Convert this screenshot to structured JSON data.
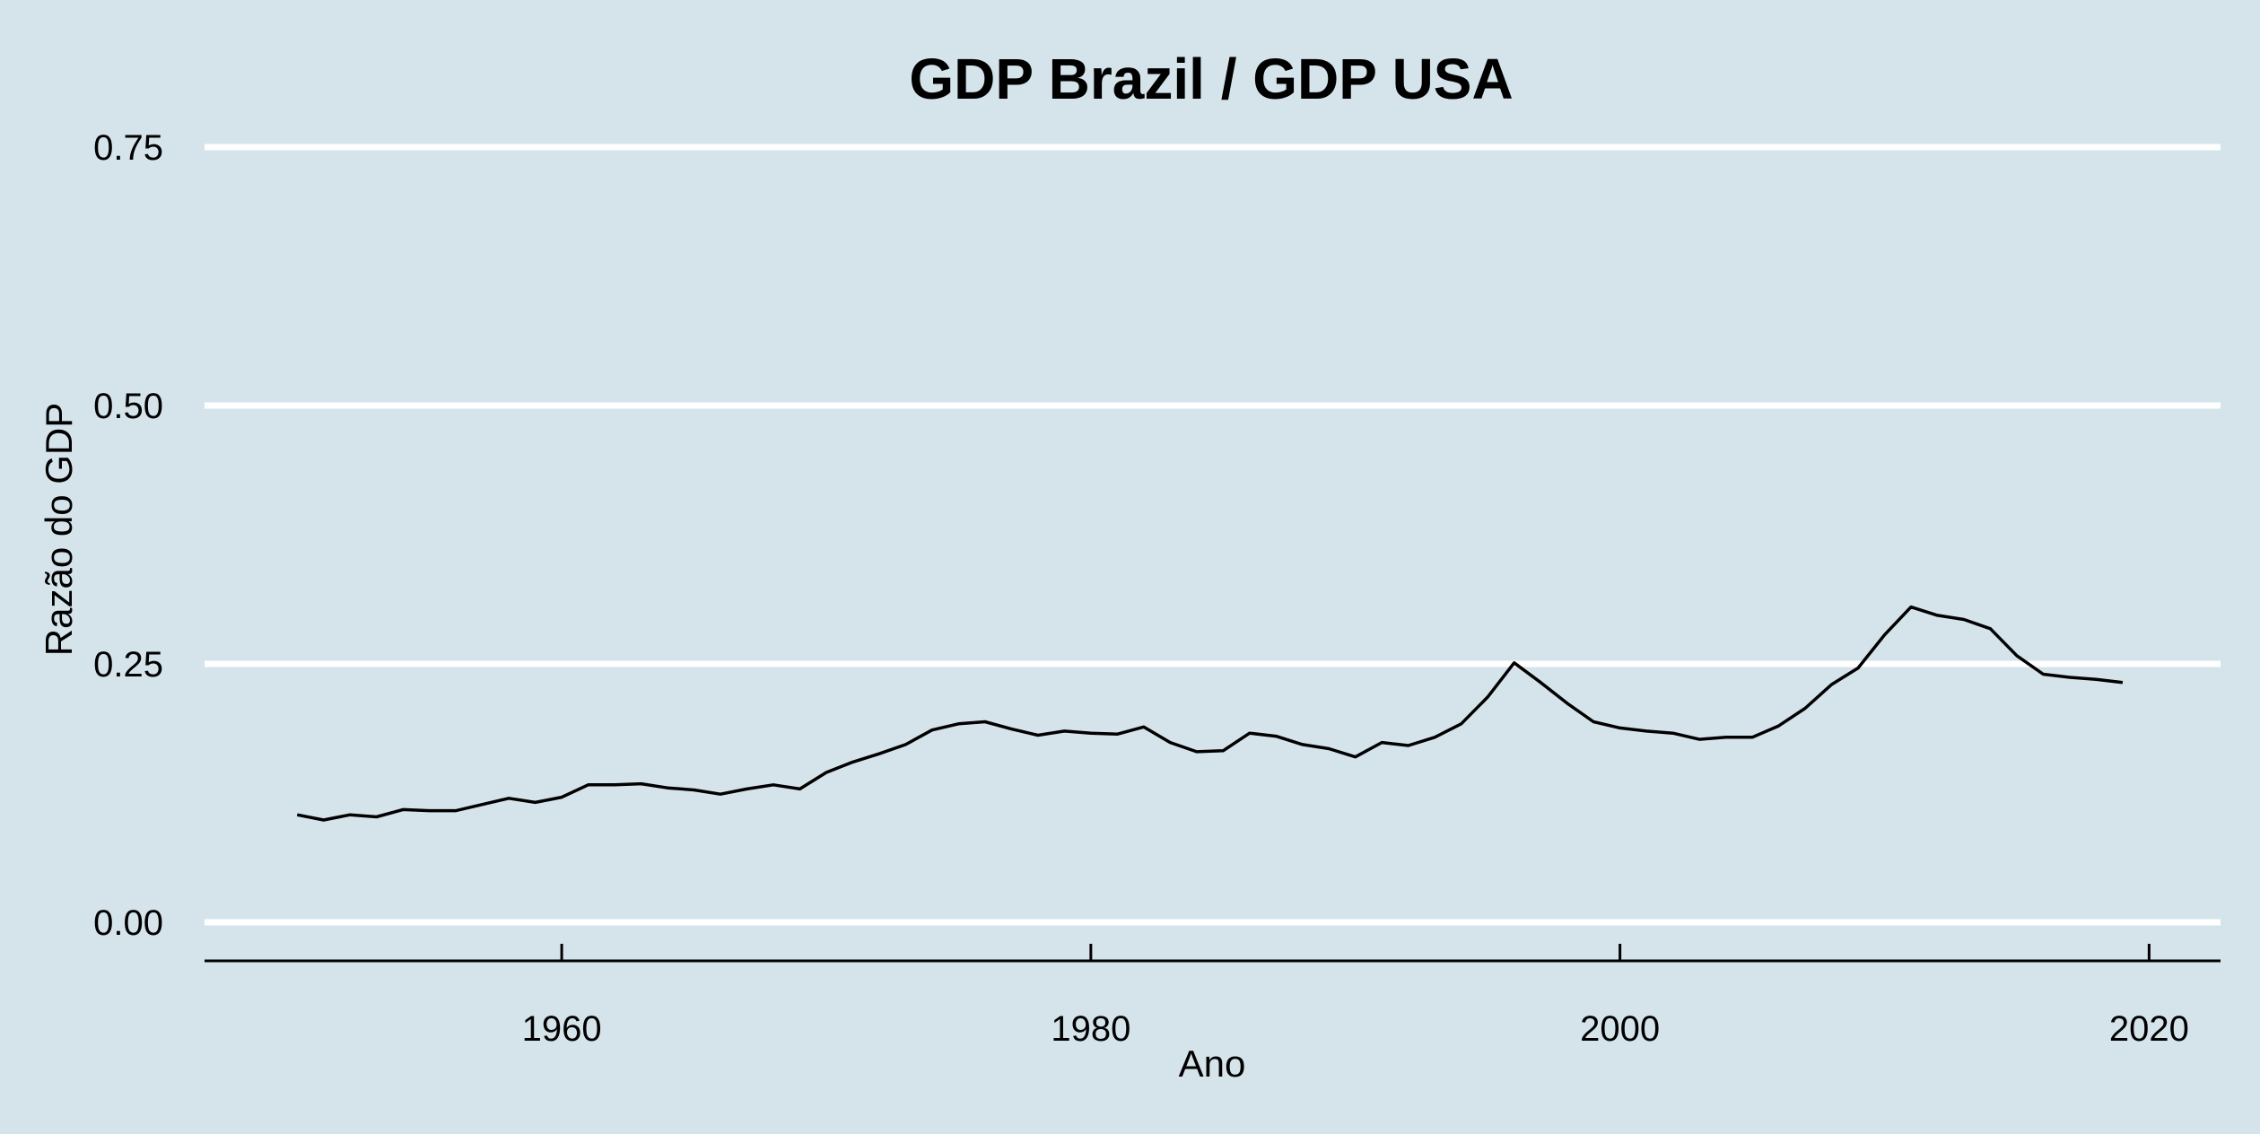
{
  "chart_data": {
    "type": "line",
    "title": "GDP Brazil / GDP USA",
    "xlabel": "Ano",
    "ylabel": "Razão do GDP",
    "xlim": [
      1946.5,
      2022.7
    ],
    "ylim": [
      0,
      0.75
    ],
    "x_ticks": [
      1960,
      1980,
      2000,
      2020
    ],
    "y_ticks": [
      "0.00",
      "0.25",
      "0.50",
      "0.75"
    ],
    "grid": "horizontal",
    "colors": {
      "background": "#d5e4eb",
      "line": "#000000",
      "grid": "#ffffff"
    },
    "series": [
      {
        "x": [
          1950,
          1951,
          1952,
          1953,
          1954,
          1955,
          1956,
          1957,
          1958,
          1959,
          1960,
          1961,
          1962,
          1963,
          1964,
          1965,
          1966,
          1967,
          1968,
          1969,
          1970,
          1971,
          1972,
          1973,
          1974,
          1975,
          1976,
          1977,
          1978,
          1979,
          1980,
          1981,
          1982,
          1983,
          1984,
          1985,
          1986,
          1987,
          1988,
          1989,
          1990,
          1991,
          1992,
          1993,
          1994,
          1995,
          1996,
          1997,
          1998,
          1999,
          2000,
          2001,
          2002,
          2003,
          2004,
          2005,
          2006,
          2007,
          2008,
          2009,
          2010,
          2011,
          2012,
          2013,
          2014,
          2015,
          2016,
          2017,
          2018,
          2019
        ],
        "values": [
          0.104,
          0.099,
          0.104,
          0.102,
          0.109,
          0.108,
          0.108,
          0.114,
          0.12,
          0.116,
          0.121,
          0.133,
          0.133,
          0.134,
          0.13,
          0.128,
          0.124,
          0.129,
          0.133,
          0.129,
          0.145,
          0.155,
          0.163,
          0.172,
          0.186,
          0.192,
          0.194,
          0.187,
          0.181,
          0.185,
          0.183,
          0.182,
          0.189,
          0.174,
          0.165,
          0.166,
          0.183,
          0.18,
          0.172,
          0.168,
          0.16,
          0.174,
          0.171,
          0.179,
          0.192,
          0.218,
          0.251,
          0.232,
          0.212,
          0.194,
          0.188,
          0.185,
          0.183,
          0.177,
          0.179,
          0.179,
          0.19,
          0.207,
          0.23,
          0.246,
          0.278,
          0.305,
          0.297,
          0.293,
          0.284,
          0.258,
          0.24,
          0.237,
          0.235,
          0.232
        ]
      }
    ]
  }
}
